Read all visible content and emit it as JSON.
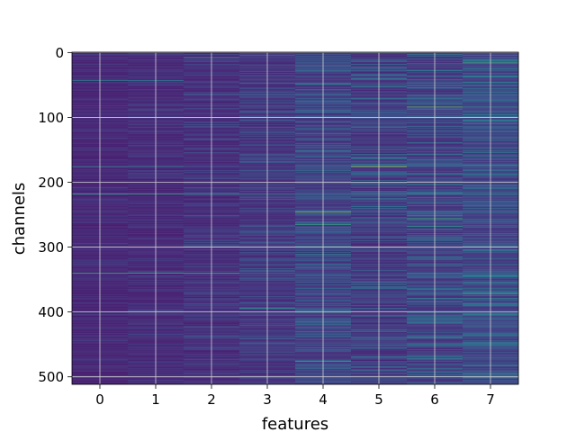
{
  "chart_data": {
    "type": "heatmap",
    "title": "",
    "xlabel": "features",
    "ylabel": "channels",
    "x_ticks": [
      0,
      1,
      2,
      3,
      4,
      5,
      6,
      7
    ],
    "y_ticks": [
      0,
      100,
      200,
      300,
      400,
      500
    ],
    "x_range": [
      -0.5,
      7.5
    ],
    "y_range": [
      511.5,
      -0.5
    ],
    "n_columns": 8,
    "n_rows": 512,
    "y_inverted": true,
    "grid": true,
    "colormap": "viridis",
    "column_mean": [
      0.14,
      0.15,
      0.17,
      0.2,
      0.24,
      0.22,
      0.25,
      0.28
    ],
    "column_spread": [
      0.05,
      0.06,
      0.08,
      0.1,
      0.13,
      0.15,
      0.16,
      0.16
    ],
    "notable_cells": [
      {
        "x": 0,
        "y": 43,
        "v": 0.55
      },
      {
        "x": 1,
        "y": 43,
        "v": 0.5
      },
      {
        "x": 0,
        "y": 176,
        "v": 0.55
      },
      {
        "x": 1,
        "y": 176,
        "v": 0.5
      },
      {
        "x": 0,
        "y": 218,
        "v": 0.7
      },
      {
        "x": 1,
        "y": 218,
        "v": 0.7
      },
      {
        "x": 2,
        "y": 218,
        "v": 0.6
      },
      {
        "x": 3,
        "y": 218,
        "v": 0.55
      },
      {
        "x": 4,
        "y": 218,
        "v": 0.55
      },
      {
        "x": 5,
        "y": 218,
        "v": 0.55
      },
      {
        "x": 6,
        "y": 218,
        "v": 0.6
      },
      {
        "x": 7,
        "y": 218,
        "v": 0.6
      },
      {
        "x": 0,
        "y": 340,
        "v": 0.75
      },
      {
        "x": 1,
        "y": 340,
        "v": 0.75
      },
      {
        "x": 2,
        "y": 340,
        "v": 0.7
      },
      {
        "x": 3,
        "y": 340,
        "v": 0.5
      },
      {
        "x": 0,
        "y": 400,
        "v": 0.5
      },
      {
        "x": 1,
        "y": 400,
        "v": 0.45
      },
      {
        "x": 3,
        "y": 394,
        "v": 0.65
      },
      {
        "x": 5,
        "y": 176,
        "v": 0.9
      },
      {
        "x": 4,
        "y": 246,
        "v": 0.85
      },
      {
        "x": 4,
        "y": 265,
        "v": 0.7
      },
      {
        "x": 4,
        "y": 476,
        "v": 0.7
      },
      {
        "x": 6,
        "y": 256,
        "v": 0.75
      },
      {
        "x": 6,
        "y": 268,
        "v": 0.65
      },
      {
        "x": 6,
        "y": 84,
        "v": 0.8
      },
      {
        "x": 7,
        "y": 84,
        "v": 0.6
      },
      {
        "x": 7,
        "y": 16,
        "v": 0.75
      },
      {
        "x": 7,
        "y": 372,
        "v": 0.7
      },
      {
        "x": 5,
        "y": 300,
        "v": 0.65
      },
      {
        "x": 4,
        "y": 48,
        "v": 0.6
      },
      {
        "x": 2,
        "y": 8,
        "v": 0.6
      },
      {
        "x": 0,
        "y": 500,
        "v": 0.45
      }
    ]
  }
}
